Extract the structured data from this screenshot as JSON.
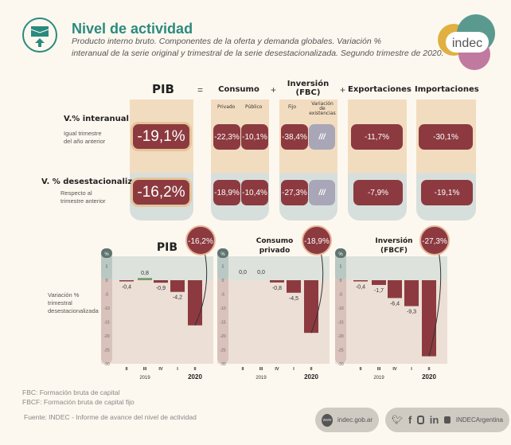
{
  "header": {
    "title": "Nivel de actividad",
    "subtitle_lines": [
      "Producto interno bruto. Componentes de la oferta y demanda globales. Variación %",
      "interanual de la serie original y trimestral de la serie desestacionalizada. Segundo trimestre de 2020."
    ],
    "logo": "indec"
  },
  "table": {
    "columns": {
      "pib": "PIB",
      "eq": "=",
      "consumo": "Consumo",
      "plus1": "+",
      "inversion1": "Inversión",
      "inversion2": "(FBC)",
      "plus2": "+",
      "exportaciones": "Exportaciones",
      "minus": "-",
      "importaciones": "Importaciones"
    },
    "subcolumns": {
      "privado": "Privado",
      "publico": "Público",
      "fijo": "Fijo",
      "variacion": "Variación de existencias"
    },
    "rows": [
      {
        "label": "V.% interanual",
        "sub1": "Igual trimestre",
        "sub2": "del año anterior",
        "pib": "-19,1%",
        "privado": "-22,3%",
        "publico": "-10,1%",
        "fijo": "-38,4%",
        "variacion": "///",
        "exportaciones": "-11,7%",
        "importaciones": "-30,1%"
      },
      {
        "label": "V. % desestacionalizada",
        "sub1": "Respecto al",
        "sub2": "trimestre anterior",
        "pib": "-16,2%",
        "privado": "-18,9%",
        "publico": "-10,4%",
        "fijo": "-27,3%",
        "variacion": "///",
        "exportaciones": "-7,9%",
        "importaciones": "-19,1%"
      }
    ]
  },
  "charts_ylabel": [
    "Variación %",
    "trimestral",
    "desestacionalizada"
  ],
  "chart_data": [
    {
      "type": "bar",
      "title": "PIB",
      "highlight": "-16,2%",
      "unit": "%",
      "categories": [
        "II",
        "III",
        "IV",
        "I",
        "II"
      ],
      "years": [
        "2019",
        "2020"
      ],
      "values": [
        -0.4,
        0.8,
        -0.9,
        -4.2,
        -16.2
      ],
      "labels": [
        "-0,4",
        "0,8",
        "-0,9",
        "-4,2",
        ""
      ],
      "yticks": [
        5,
        0,
        -5,
        -10,
        -15,
        -20,
        -25,
        -30
      ],
      "ylim": [
        -30,
        5
      ],
      "colors": {
        "negative": "#8c3a40",
        "positive": "#7c9a6a"
      }
    },
    {
      "type": "bar",
      "title": "Consumo privado",
      "highlight": "-18,9%",
      "unit": "%",
      "categories": [
        "II",
        "III",
        "IV",
        "I",
        "II"
      ],
      "years": [
        "2019",
        "2020"
      ],
      "values": [
        0.0,
        0.0,
        -0.8,
        -4.5,
        -18.9
      ],
      "labels": [
        "0,0",
        "0,0",
        "-0,8",
        "-4,5",
        ""
      ],
      "yticks": [
        5,
        0,
        -5,
        -10,
        -15,
        -20,
        -25,
        -30
      ],
      "ylim": [
        -30,
        5
      ],
      "colors": {
        "negative": "#8c3a40",
        "positive": "#7c9a6a"
      }
    },
    {
      "type": "bar",
      "title": "Inversión (FBCF)",
      "highlight": "-27,3%",
      "unit": "%",
      "categories": [
        "II",
        "III",
        "IV",
        "I",
        "II"
      ],
      "years": [
        "2019",
        "2020"
      ],
      "values": [
        -0.4,
        -1.7,
        -6.4,
        -9.3,
        -27.3
      ],
      "labels": [
        "-0,4",
        "-1,7",
        "-6,4",
        "-9,3",
        ""
      ],
      "yticks": [
        5,
        0,
        -5,
        -10,
        -15,
        -20,
        -25,
        -30
      ],
      "ylim": [
        -30,
        5
      ],
      "colors": {
        "negative": "#8c3a40",
        "positive": "#7c9a6a"
      }
    }
  ],
  "footer": {
    "notes": [
      "FBC: Formación bruta de capital",
      "FBCF: Formación bruta de capital fijo"
    ],
    "source": "Fuente: INDEC - Informe de avance del nivel de actividad",
    "web": "indec.gob.ar",
    "www": "www",
    "social": "INDECArgentina",
    "social_icons": [
      "twitter-icon",
      "facebook-icon",
      "instagram-icon",
      "linkedin-icon",
      "youtube-icon"
    ]
  }
}
